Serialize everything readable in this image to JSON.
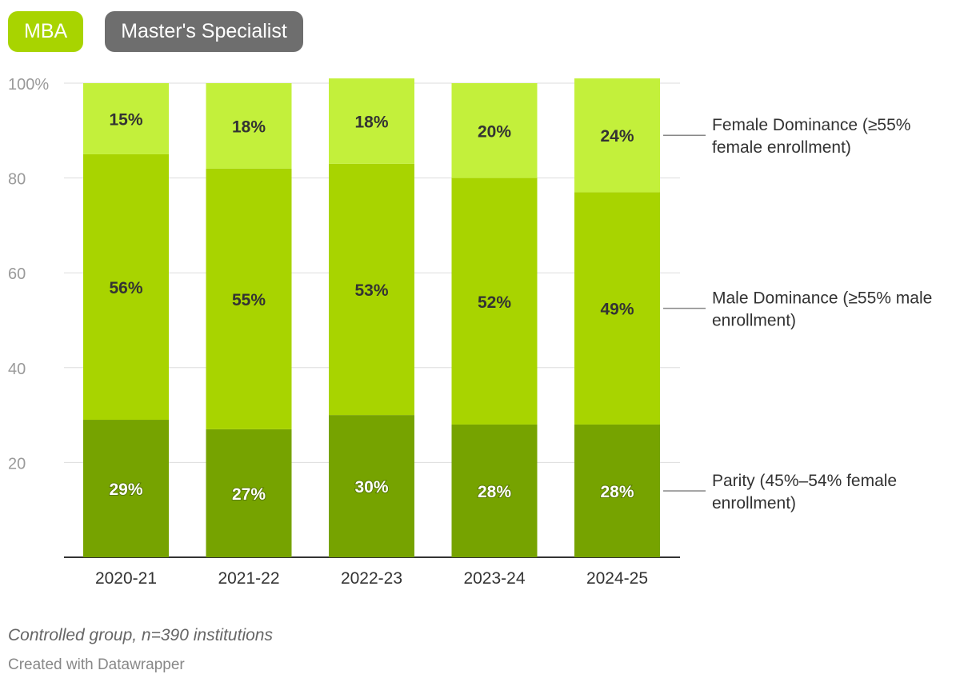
{
  "tabs": [
    {
      "label": "MBA",
      "active": true
    },
    {
      "label": "Master's Specialist",
      "active": false
    }
  ],
  "chart_data": {
    "type": "bar",
    "stacked": true,
    "categories": [
      "2020-21",
      "2021-22",
      "2022-23",
      "2023-24",
      "2024-25"
    ],
    "series": [
      {
        "name": "Parity (45%–54% female enrollment)",
        "values": [
          29,
          27,
          30,
          28,
          28
        ],
        "color": "#76a300",
        "label_color": "#ffffff"
      },
      {
        "name": "Male Dominance (≥55% male enrollment)",
        "values": [
          56,
          55,
          53,
          52,
          49
        ],
        "color": "#a8d400",
        "label_color": "#333333"
      },
      {
        "name": "Female Dominance (≥55% female enrollment)",
        "values": [
          15,
          18,
          18,
          20,
          24
        ],
        "color": "#c3f03b",
        "label_color": "#333333"
      }
    ],
    "value_suffix": "%",
    "yticks": [
      "20",
      "40",
      "60",
      "80",
      "100%"
    ],
    "ylim": [
      0,
      100
    ],
    "grid": true,
    "legend": "right, inline labels",
    "title": "",
    "xlabel": "",
    "ylabel": ""
  },
  "note": "Controlled group, n=390 institutions",
  "credit": "Created with Datawrapper"
}
